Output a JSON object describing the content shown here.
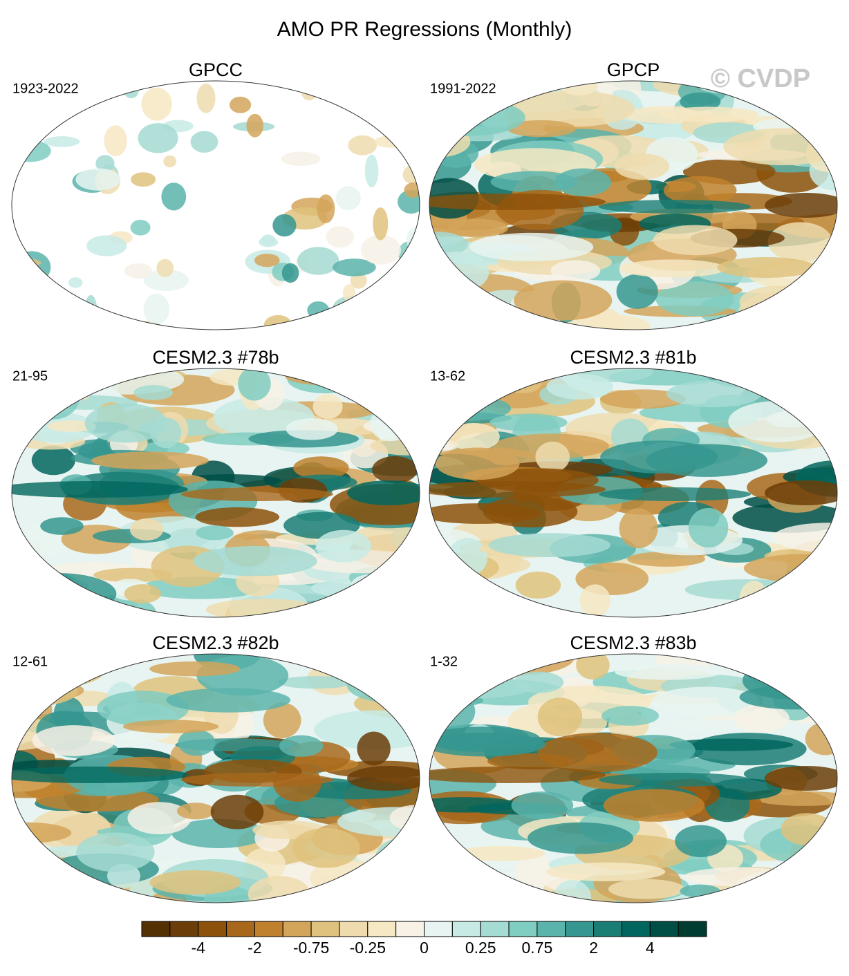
{
  "title": "AMO PR Regressions (Monthly)",
  "watermark": "© CVDP",
  "panels": [
    {
      "title": "GPCC",
      "period": "1923-2022"
    },
    {
      "title": "GPCP",
      "period": "1991-2022"
    },
    {
      "title": "CESM2.3 #78b",
      "period": "21-95"
    },
    {
      "title": "CESM2.3 #81b",
      "period": "13-62"
    },
    {
      "title": "CESM2.3 #82b",
      "period": "12-61"
    },
    {
      "title": "CESM2.3 #83b",
      "period": "1-32"
    }
  ],
  "colorbar": {
    "colors": [
      "#543005",
      "#6b3d08",
      "#8c510a",
      "#a8681b",
      "#bf812d",
      "#d3a55a",
      "#dfc27d",
      "#eedcae",
      "#f6e8c3",
      "#f7f1e6",
      "#e8f4f1",
      "#c7eae5",
      "#a4dbd2",
      "#80cdc1",
      "#5ab4ac",
      "#35978f",
      "#1b7e76",
      "#01665e",
      "#004f46",
      "#003c30"
    ],
    "ticks": [
      -4,
      -2,
      -0.75,
      -0.25,
      0,
      0.25,
      0.75,
      2,
      4
    ]
  }
}
